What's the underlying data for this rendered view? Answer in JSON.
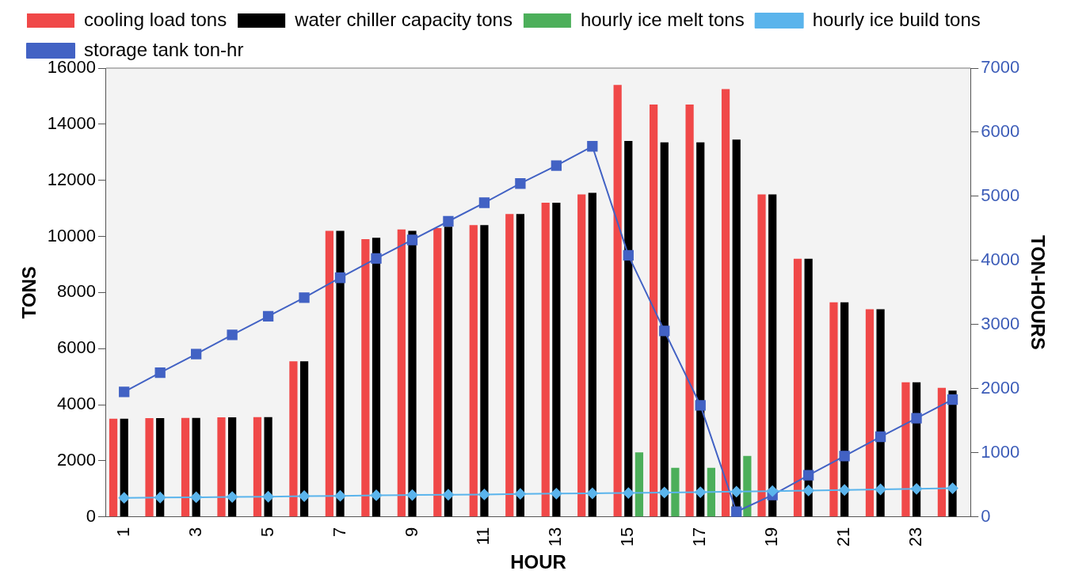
{
  "chart_data": {
    "type": "bar",
    "xlabel": "HOUR",
    "ylabel": "TONS",
    "y2label": "TON-HOURS",
    "categories": [
      "1",
      null,
      "3",
      null,
      "5",
      null,
      "7",
      null,
      "9",
      null,
      "11",
      null,
      "13",
      null,
      "15",
      null,
      "17",
      null,
      "19",
      null,
      "21",
      null,
      "23",
      null
    ],
    "series": [
      {
        "name": "cooling load tons",
        "type": "bar",
        "color": "#f04848",
        "values": [
          3500,
          3520,
          3530,
          3550,
          3560,
          5550,
          10200,
          9900,
          10250,
          10300,
          10400,
          10800,
          11200,
          11500,
          15400,
          14700,
          14700,
          15250,
          11500,
          9200,
          7650,
          7400,
          4800,
          4600
        ]
      },
      {
        "name": "water chiller capacity tons",
        "type": "bar",
        "color": "#000000",
        "values": [
          3500,
          3520,
          3530,
          3550,
          3560,
          5550,
          10200,
          9950,
          10200,
          10350,
          10400,
          10800,
          11200,
          11550,
          13400,
          13350,
          13350,
          13450,
          11500,
          9200,
          7650,
          7400,
          4800,
          4500
        ]
      },
      {
        "name": "hourly ice melt tons",
        "type": "bar",
        "color": "#4caf5a",
        "values": [
          null,
          null,
          null,
          null,
          null,
          null,
          null,
          null,
          null,
          null,
          null,
          null,
          null,
          null,
          2300,
          1750,
          1750,
          2170,
          null,
          null,
          null,
          null,
          null,
          null
        ]
      },
      {
        "name": "hourly ice build tons",
        "type": "line",
        "color": "#5ab4ec",
        "marker": "diamond",
        "values": [
          680,
          690,
          700,
          710,
          720,
          740,
          750,
          770,
          780,
          790,
          800,
          820,
          830,
          840,
          850,
          870,
          880,
          900,
          920,
          940,
          960,
          980,
          1000,
          1020
        ]
      },
      {
        "name": "storage tank ton-hr",
        "type": "line",
        "axis": "y2",
        "color": "#4262c4",
        "marker": "square",
        "values": [
          1950,
          2250,
          2540,
          2840,
          3130,
          3420,
          3730,
          4030,
          4320,
          4610,
          4900,
          5200,
          5480,
          5780,
          4080,
          2900,
          1740,
          80,
          340,
          650,
          950,
          1250,
          1540,
          1830
        ]
      }
    ],
    "ylim": [
      0,
      16000
    ],
    "yticks": [
      0,
      2000,
      4000,
      6000,
      8000,
      10000,
      12000,
      14000,
      16000
    ],
    "y2lim": [
      0,
      7000
    ],
    "y2ticks": [
      0,
      1000,
      2000,
      3000,
      4000,
      5000,
      6000,
      7000
    ],
    "legend": "top",
    "grid": false
  }
}
